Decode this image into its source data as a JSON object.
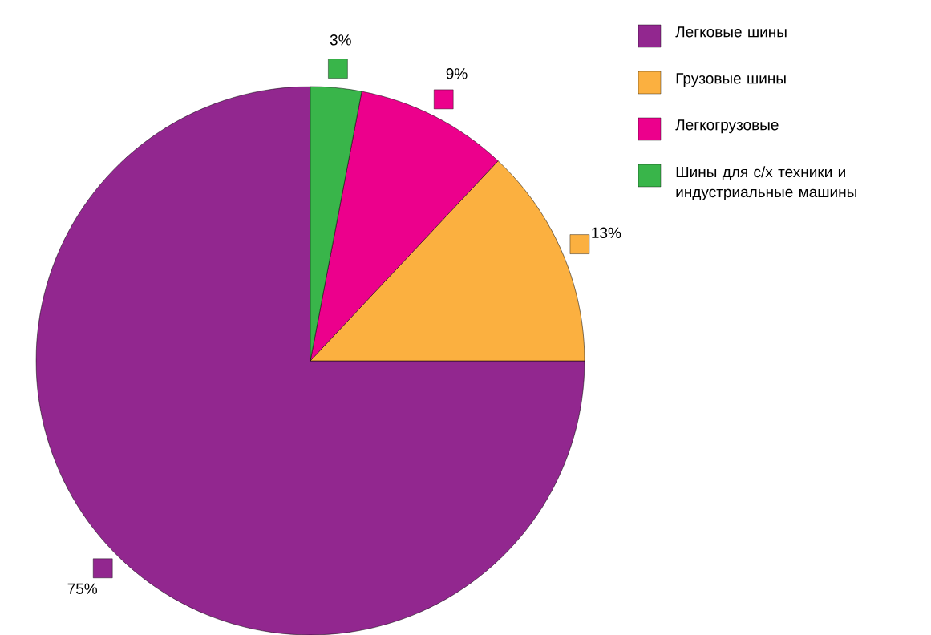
{
  "chart_data": {
    "type": "pie",
    "categories": [
      "Легковые шины",
      "Грузовые шины",
      "Легкогрузовые",
      "Шины для с/х техники и индустриальные машины"
    ],
    "values": [
      75,
      13,
      9,
      3
    ],
    "colors": [
      "#92278f",
      "#fbb040",
      "#ec008c",
      "#39b54a"
    ],
    "value_labels": [
      "75%",
      "13%",
      "9%",
      "3%"
    ],
    "legend": "top right"
  }
}
